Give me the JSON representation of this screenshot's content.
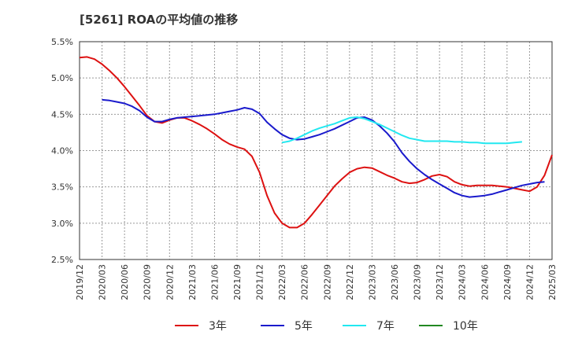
{
  "chart_data": {
    "type": "line",
    "title": "[5261]  ROAの平均値の推移",
    "xlabel": "",
    "ylabel": "",
    "ylim": [
      2.5,
      5.5
    ],
    "yticks": [
      "2.5%",
      "3.0%",
      "3.5%",
      "4.0%",
      "4.5%",
      "5.0%",
      "5.5%"
    ],
    "ytick_values": [
      2.5,
      3.0,
      3.5,
      4.0,
      4.5,
      5.0,
      5.5
    ],
    "xticks": [
      "2019/12",
      "2020/03",
      "2020/06",
      "2020/09",
      "2020/12",
      "2021/03",
      "2021/06",
      "2021/09",
      "2021/12",
      "2022/03",
      "2022/06",
      "2022/09",
      "2022/12",
      "2023/03",
      "2023/06",
      "2023/09",
      "2023/12",
      "2024/03",
      "2024/06",
      "2024/09",
      "2024/12",
      "2025/03"
    ],
    "x_months": [
      "2019/12",
      "2020/01",
      "2020/02",
      "2020/03",
      "2020/04",
      "2020/05",
      "2020/06",
      "2020/07",
      "2020/08",
      "2020/09",
      "2020/10",
      "2020/11",
      "2020/12",
      "2021/01",
      "2021/02",
      "2021/03",
      "2021/04",
      "2021/05",
      "2021/06",
      "2021/07",
      "2021/08",
      "2021/09",
      "2021/10",
      "2021/11",
      "2021/12",
      "2022/01",
      "2022/02",
      "2022/03",
      "2022/04",
      "2022/05",
      "2022/06",
      "2022/07",
      "2022/08",
      "2022/09",
      "2022/10",
      "2022/11",
      "2022/12",
      "2023/01",
      "2023/02",
      "2023/03",
      "2023/04",
      "2023/05",
      "2023/06",
      "2023/07",
      "2023/08",
      "2023/09",
      "2023/10",
      "2023/11",
      "2023/12",
      "2024/01",
      "2024/02",
      "2024/03",
      "2024/04",
      "2024/05",
      "2024/06",
      "2024/07",
      "2024/08",
      "2024/09",
      "2024/10",
      "2024/11",
      "2024/12",
      "2025/01",
      "2025/02",
      "2025/03"
    ],
    "grid": true,
    "legend_position": "bottom",
    "series": [
      {
        "name": "3年",
        "color": "#dd1111",
        "start": "2019/12",
        "values": [
          5.28,
          5.29,
          5.26,
          5.19,
          5.1,
          5.0,
          4.88,
          4.75,
          4.62,
          4.48,
          4.4,
          4.38,
          4.42,
          4.45,
          4.45,
          4.41,
          4.36,
          4.3,
          4.23,
          4.15,
          4.09,
          4.05,
          4.02,
          3.92,
          3.7,
          3.38,
          3.14,
          3.0,
          2.94,
          2.94,
          3.0,
          3.12,
          3.25,
          3.38,
          3.51,
          3.61,
          3.7,
          3.75,
          3.77,
          3.76,
          3.71,
          3.66,
          3.62,
          3.57,
          3.55,
          3.56,
          3.6,
          3.65,
          3.67,
          3.64,
          3.57,
          3.53,
          3.51,
          3.52,
          3.52,
          3.52,
          3.51,
          3.5,
          3.48,
          3.46,
          3.44,
          3.5,
          3.66,
          3.94
        ]
      },
      {
        "name": "5年",
        "color": "#1a1acc",
        "start": "2020/03",
        "values": [
          4.7,
          4.69,
          4.67,
          4.65,
          4.61,
          4.55,
          4.46,
          4.4,
          4.4,
          4.43,
          4.45,
          4.46,
          4.47,
          4.48,
          4.49,
          4.5,
          4.52,
          4.54,
          4.56,
          4.59,
          4.57,
          4.51,
          4.39,
          4.3,
          4.22,
          4.17,
          4.15,
          4.16,
          4.19,
          4.22,
          4.26,
          4.3,
          4.35,
          4.4,
          4.45,
          4.46,
          4.42,
          4.34,
          4.24,
          4.12,
          3.97,
          3.85,
          3.75,
          3.67,
          3.6,
          3.54,
          3.48,
          3.42,
          3.38,
          3.36,
          3.37,
          3.38,
          3.4,
          3.43,
          3.46,
          3.49,
          3.52,
          3.54,
          3.56,
          3.57
        ]
      },
      {
        "name": "7年",
        "color": "#22e8f0",
        "start": "2022/03",
        "values": [
          4.11,
          4.13,
          4.17,
          4.22,
          4.27,
          4.31,
          4.34,
          4.37,
          4.41,
          4.45,
          4.46,
          4.44,
          4.4,
          4.36,
          4.31,
          4.26,
          4.21,
          4.17,
          4.15,
          4.13,
          4.13,
          4.13,
          4.13,
          4.12,
          4.12,
          4.11,
          4.11,
          4.1,
          4.1,
          4.1,
          4.1,
          4.11,
          4.12
        ]
      },
      {
        "name": "10年",
        "color": "#228822",
        "start": "2025/03",
        "values": []
      }
    ]
  }
}
